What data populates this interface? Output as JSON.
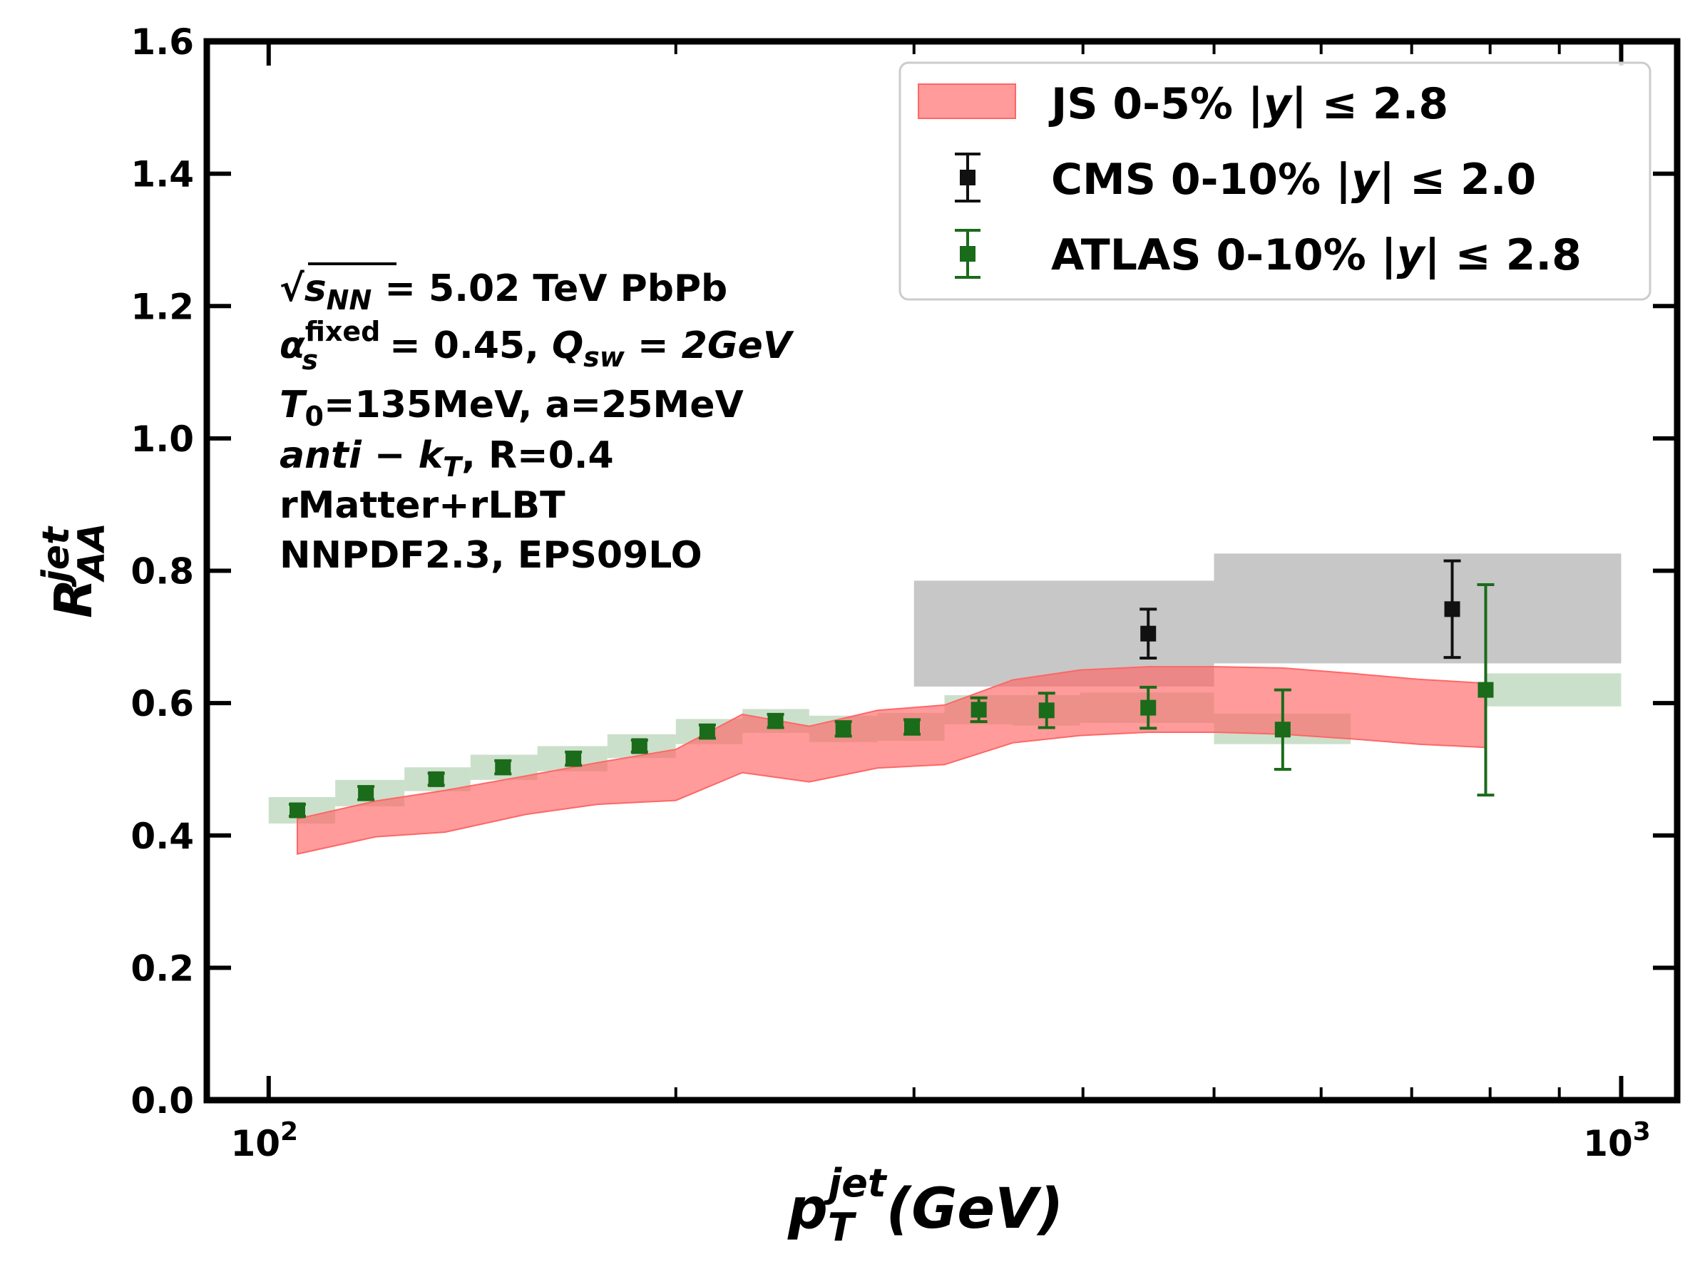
{
  "chart_data": {
    "type": "scatter",
    "title": "",
    "x_scale": "log",
    "xlim": [
      90,
      1100
    ],
    "ylim": [
      0.0,
      1.6
    ],
    "x_ticks": [
      {
        "value": 100,
        "base": "10",
        "exp": "2"
      },
      {
        "value": 1000,
        "base": "10",
        "exp": "3"
      }
    ],
    "y_ticks": [
      "0.0",
      "0.2",
      "0.4",
      "0.6",
      "0.8",
      "1.0",
      "1.2",
      "1.4",
      "1.6"
    ],
    "xlabel": {
      "main": "p",
      "sub": "T",
      "sup": "jet",
      "unit": "(GeV)"
    },
    "ylabel": {
      "main": "R",
      "sub": "AA",
      "sup": "jet"
    },
    "legend_position": "top-right",
    "colors": {
      "js": "#ff6666",
      "cms": "#111111",
      "atlas": "#1a6b1a",
      "cms_sys": "#bdbdbd",
      "atlas_sys": "#a9cca6"
    },
    "series": [
      {
        "name": "JS 0-5% |y| ≤ 2.8",
        "kind": "band",
        "x": [
          105,
          120,
          135,
          155,
          175,
          200,
          224,
          251,
          282,
          316,
          355,
          398,
          447,
          501,
          562,
          631,
          708,
          794
        ],
        "lower": [
          0.372,
          0.398,
          0.405,
          0.432,
          0.447,
          0.453,
          0.495,
          0.481,
          0.502,
          0.507,
          0.54,
          0.551,
          0.556,
          0.556,
          0.553,
          0.546,
          0.538,
          0.533
        ],
        "upper": [
          0.425,
          0.452,
          0.468,
          0.49,
          0.51,
          0.53,
          0.583,
          0.565,
          0.589,
          0.597,
          0.635,
          0.65,
          0.655,
          0.655,
          0.653,
          0.645,
          0.636,
          0.63
        ]
      },
      {
        "name": "CMS 0-10% |y| ≤ 2.0",
        "kind": "points",
        "points": [
          {
            "x": 447,
            "y": 0.705,
            "err": 0.037,
            "sys_lo": 300,
            "sys_hi": 500,
            "sys_y": [
              0.625,
              0.785
            ]
          },
          {
            "x": 750,
            "y": 0.742,
            "err": 0.073,
            "sys_lo": 500,
            "sys_hi": 1000,
            "sys_y": [
              0.66,
              0.826
            ]
          }
        ]
      },
      {
        "name": "ATLAS 0-10% |y| ≤ 2.8",
        "kind": "points",
        "points": [
          {
            "x": 105,
            "y": 0.438,
            "err": 0.009,
            "sys_lo": 100,
            "sys_hi": 112,
            "sys_y": [
              0.418,
              0.458
            ]
          },
          {
            "x": 118,
            "y": 0.464,
            "err": 0.01,
            "sys_lo": 112,
            "sys_hi": 126,
            "sys_y": [
              0.444,
              0.484
            ]
          },
          {
            "x": 133,
            "y": 0.485,
            "err": 0.009,
            "sys_lo": 126,
            "sys_hi": 141,
            "sys_y": [
              0.467,
              0.503
            ]
          },
          {
            "x": 149,
            "y": 0.503,
            "err": 0.01,
            "sys_lo": 141,
            "sys_hi": 158,
            "sys_y": [
              0.484,
              0.522
            ]
          },
          {
            "x": 168,
            "y": 0.516,
            "err": 0.01,
            "sys_lo": 158,
            "sys_hi": 178,
            "sys_y": [
              0.497,
              0.535
            ]
          },
          {
            "x": 188,
            "y": 0.535,
            "err": 0.009,
            "sys_lo": 178,
            "sys_hi": 200,
            "sys_y": [
              0.517,
              0.553
            ]
          },
          {
            "x": 211,
            "y": 0.557,
            "err": 0.01,
            "sys_lo": 200,
            "sys_hi": 224,
            "sys_y": [
              0.538,
              0.576
            ]
          },
          {
            "x": 237,
            "y": 0.573,
            "err": 0.01,
            "sys_lo": 224,
            "sys_hi": 251,
            "sys_y": [
              0.555,
              0.591
            ]
          },
          {
            "x": 266,
            "y": 0.561,
            "err": 0.011,
            "sys_lo": 251,
            "sys_hi": 282,
            "sys_y": [
              0.541,
              0.581
            ]
          },
          {
            "x": 299,
            "y": 0.564,
            "err": 0.011,
            "sys_lo": 282,
            "sys_hi": 316,
            "sys_y": [
              0.543,
              0.585
            ]
          },
          {
            "x": 335,
            "y": 0.59,
            "err": 0.018,
            "sys_lo": 316,
            "sys_hi": 355,
            "sys_y": [
              0.568,
              0.612
            ]
          },
          {
            "x": 376,
            "y": 0.589,
            "err": 0.026,
            "sys_lo": 355,
            "sys_hi": 398,
            "sys_y": [
              0.566,
              0.612
            ]
          },
          {
            "x": 447,
            "y": 0.593,
            "err": 0.031,
            "sys_lo": 398,
            "sys_hi": 500,
            "sys_y": [
              0.57,
              0.616
            ]
          },
          {
            "x": 562,
            "y": 0.56,
            "err": 0.06,
            "sys_lo": 500,
            "sys_hi": 631,
            "sys_y": [
              0.538,
              0.584
            ]
          },
          {
            "x": 794,
            "y": 0.62,
            "err": 0.159,
            "sys_lo": 794,
            "sys_hi": 1000,
            "sys_y": [
              0.595,
              0.645
            ]
          }
        ]
      }
    ],
    "annotation": {
      "l1_sqrt": "√",
      "l1_s": "s",
      "l1_nn": "NN",
      "l1_rest": " = 5.02 TeV PbPb",
      "l2_alpha": "α",
      "l2_fixed": "fixed",
      "l2_s": "s",
      "l2_mid": " = 0.45, ",
      "l2_q": "Q",
      "l2_sw": "sw",
      "l2_tail": " = 2GeV",
      "l3_t": "T",
      "l3_0": "0",
      "l3_rest": "=135MeV, a=25MeV",
      "l4_anti": "anti",
      "l4_minus": " − ",
      "l4_k": "k",
      "l4_t": "T",
      "l4_rest": ", R=0.4",
      "l5": "rMatter+rLBT",
      "l6": "NNPDF2.3, EPS09LO"
    },
    "legend": {
      "js": {
        "pre": "JS 0-5% |",
        "y": "y",
        "post": "| ≤ 2.8"
      },
      "cms": {
        "pre": "CMS 0-10% |",
        "y": "y",
        "post": "| ≤ 2.0"
      },
      "atlas": {
        "pre": "ATLAS 0-10% |",
        "y": "y",
        "post": "| ≤ 2.8"
      }
    }
  }
}
